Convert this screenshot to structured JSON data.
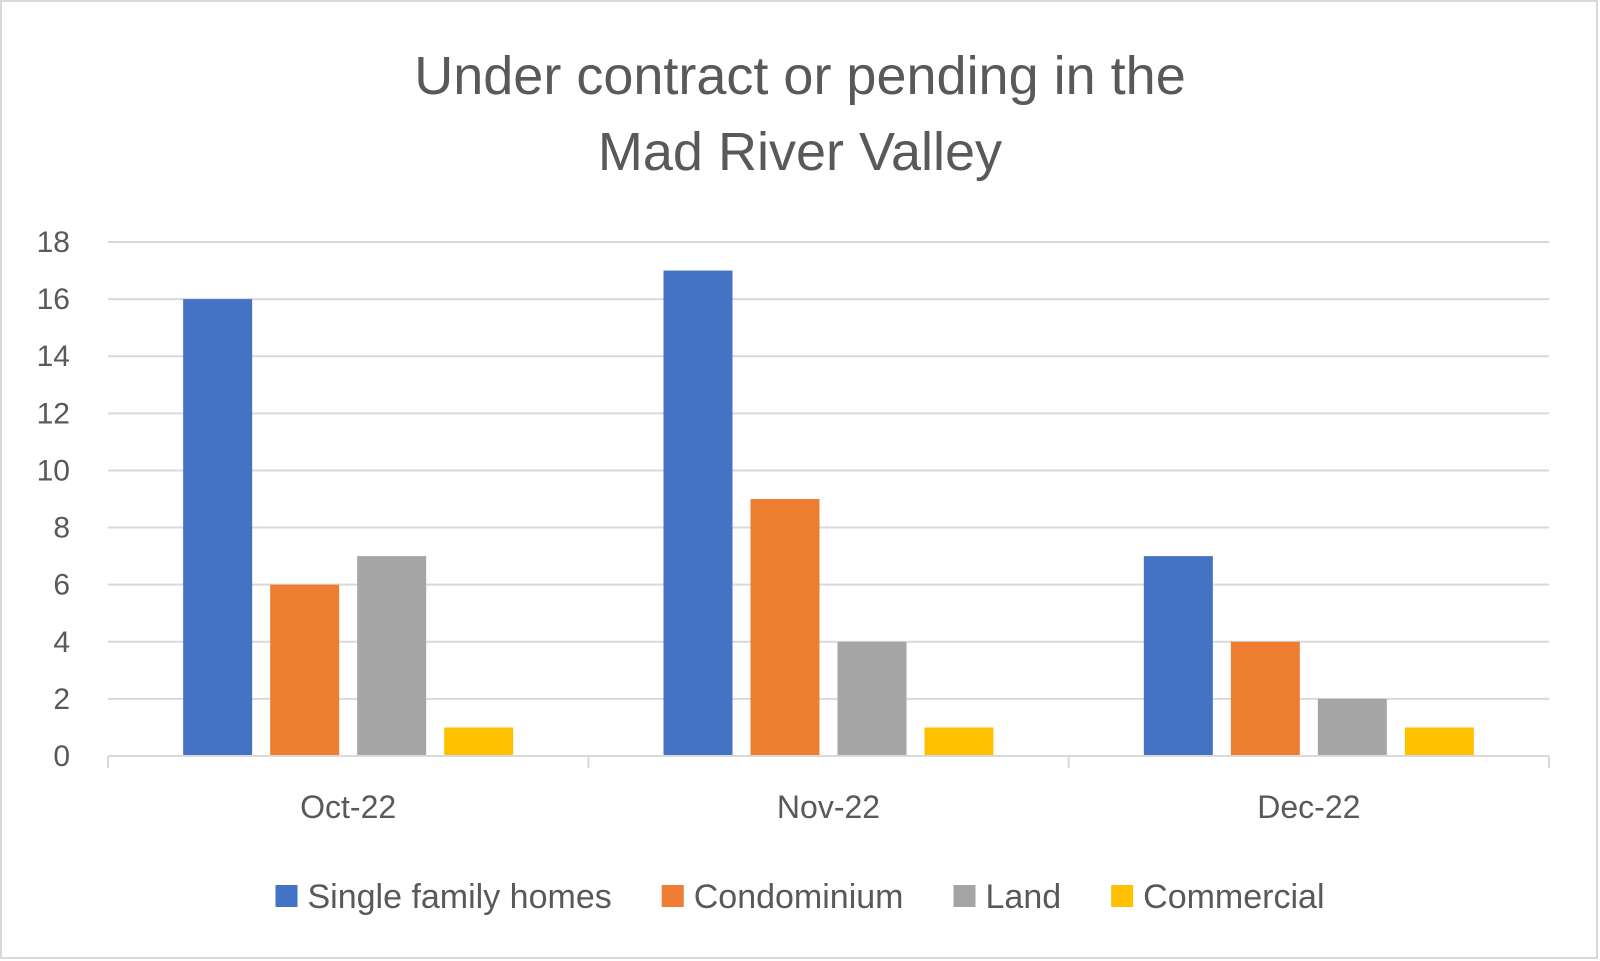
{
  "chart_data": {
    "type": "bar",
    "title_lines": [
      "Under contract or pending in the",
      "Mad River Valley"
    ],
    "xlabel": "",
    "ylabel": "",
    "categories": [
      "Oct-22",
      "Nov-22",
      "Dec-22"
    ],
    "ylim": [
      0,
      18
    ],
    "yticks": [
      0,
      2,
      4,
      6,
      8,
      10,
      12,
      14,
      16,
      18
    ],
    "grid": true,
    "legend_position": "bottom",
    "series": [
      {
        "name": "Single family homes",
        "color": "#4472c4",
        "values": [
          16,
          17,
          7
        ]
      },
      {
        "name": "Condominium",
        "color": "#ed7d31",
        "values": [
          6,
          9,
          4
        ]
      },
      {
        "name": "Land",
        "color": "#a5a5a5",
        "values": [
          7,
          4,
          2
        ]
      },
      {
        "name": "Commercial",
        "color": "#ffc000",
        "values": [
          1,
          1,
          1
        ]
      }
    ]
  }
}
